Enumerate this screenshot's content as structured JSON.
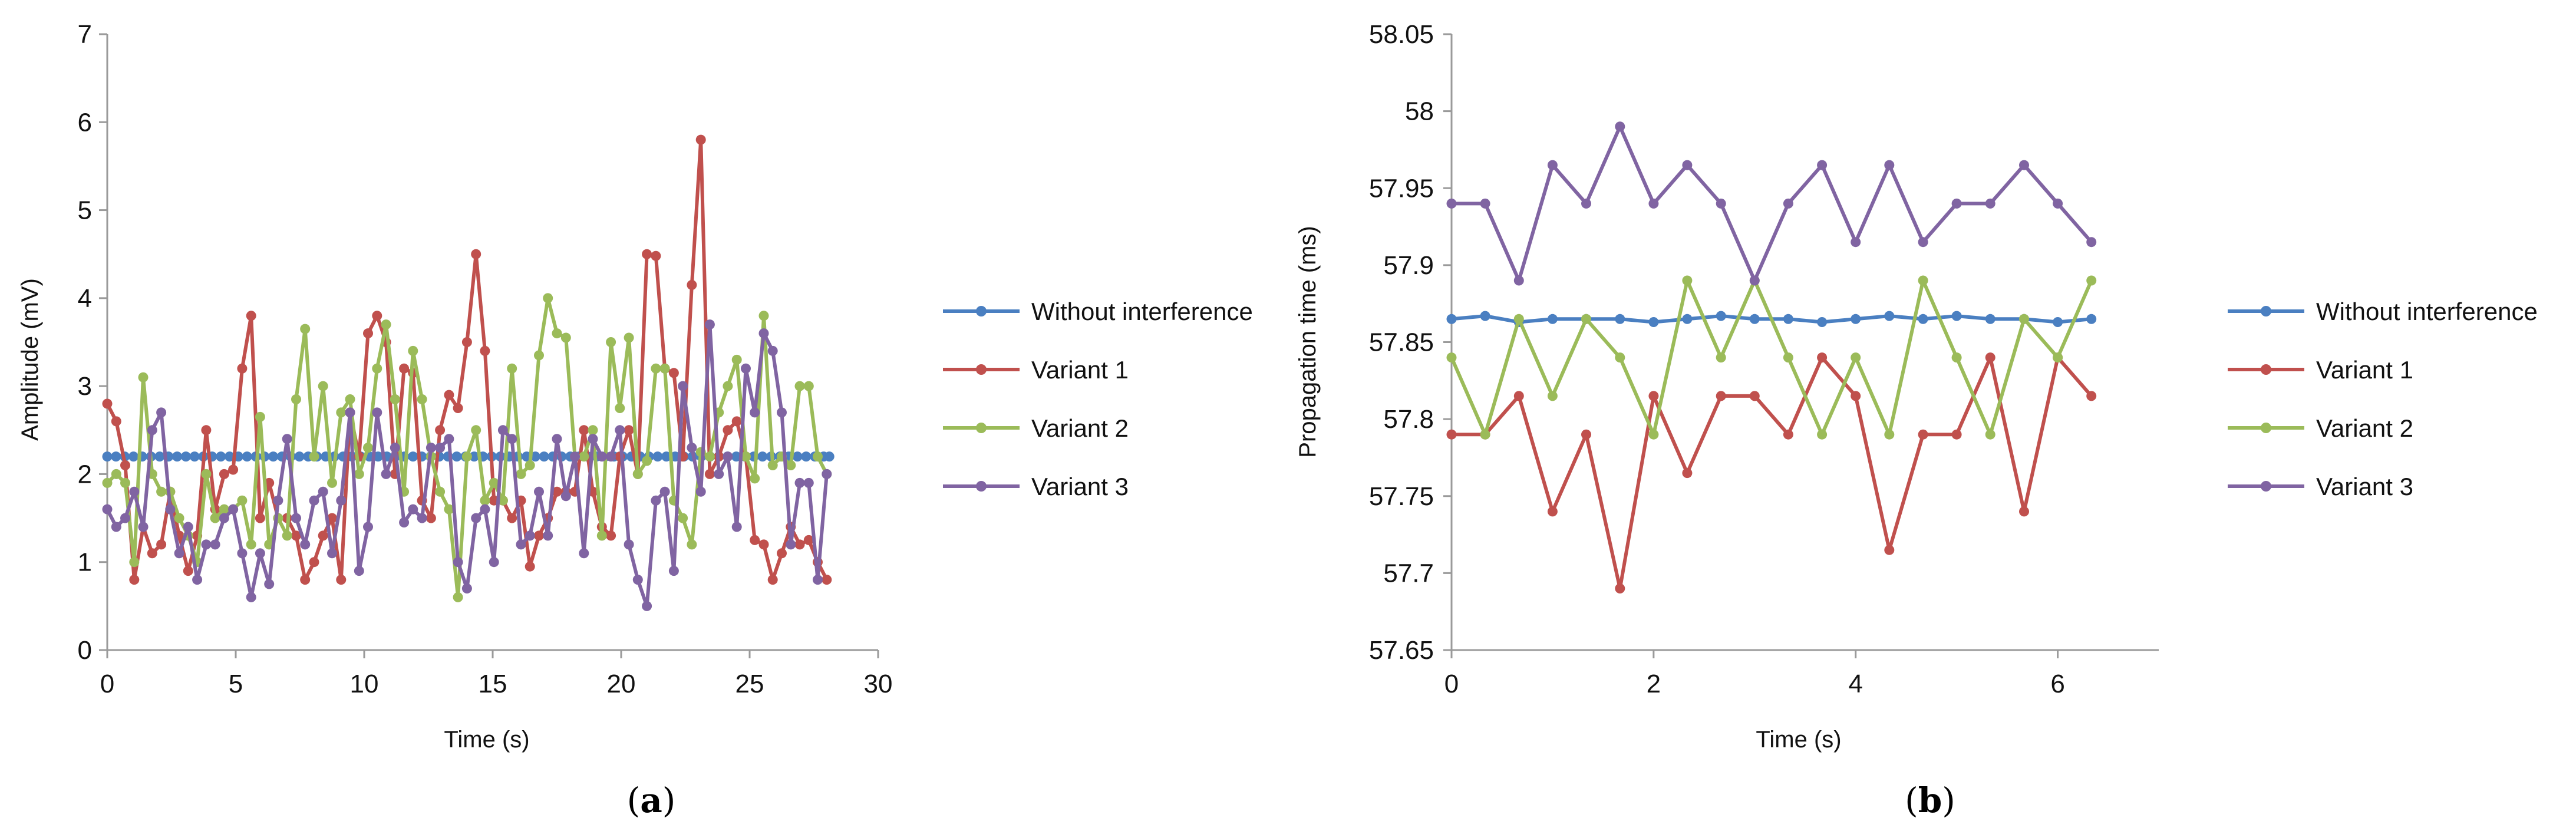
{
  "chart_data": [
    {
      "type": "line",
      "panel_label": "a",
      "xlabel": "Time (s)",
      "ylabel": "Amplitude (mV)",
      "xlim": [
        0,
        30
      ],
      "ylim": [
        0,
        7
      ],
      "xticks": [
        0,
        5,
        10,
        15,
        20,
        25,
        30
      ],
      "yticks": [
        0,
        1,
        2,
        3,
        4,
        5,
        6,
        7
      ],
      "legend_position": "right",
      "series": [
        {
          "name": "Without interference",
          "color": "#4a7fc1",
          "x": [
            0,
            0.34,
            0.68,
            1.02,
            1.36,
            1.7,
            2.04,
            2.38,
            2.72,
            3.06,
            3.4,
            3.74,
            4.08,
            4.42,
            4.76,
            5.1,
            5.44,
            5.78,
            6.12,
            6.46,
            6.8,
            7.14,
            7.48,
            7.82,
            8.16,
            8.5,
            8.84,
            9.18,
            9.52,
            9.86,
            10.2,
            10.54,
            10.88,
            11.22,
            11.56,
            11.9,
            12.24,
            12.58,
            12.92,
            13.26,
            13.6,
            13.94,
            14.28,
            14.62,
            14.96,
            15.3,
            15.64,
            15.98,
            16.32,
            16.66,
            17,
            17.34,
            17.68,
            18.02,
            18.36,
            18.7,
            19.04,
            19.38,
            19.72,
            20.06,
            20.4,
            20.74,
            21.08,
            21.42,
            21.76,
            22.1,
            22.44,
            22.78,
            23.12,
            23.46,
            23.8,
            24.14,
            24.48,
            24.82,
            25.16,
            25.5,
            25.84,
            26.18,
            26.52,
            26.86,
            27.2,
            27.54,
            27.88,
            28.1
          ],
          "values": [
            2.2,
            2.2,
            2.2,
            2.2,
            2.2,
            2.2,
            2.2,
            2.2,
            2.2,
            2.2,
            2.2,
            2.2,
            2.2,
            2.2,
            2.2,
            2.2,
            2.2,
            2.2,
            2.2,
            2.2,
            2.2,
            2.2,
            2.2,
            2.2,
            2.2,
            2.2,
            2.2,
            2.2,
            2.2,
            2.2,
            2.2,
            2.2,
            2.2,
            2.2,
            2.2,
            2.2,
            2.2,
            2.2,
            2.2,
            2.2,
            2.2,
            2.2,
            2.2,
            2.2,
            2.2,
            2.2,
            2.2,
            2.2,
            2.2,
            2.2,
            2.2,
            2.2,
            2.2,
            2.2,
            2.2,
            2.2,
            2.2,
            2.2,
            2.2,
            2.2,
            2.2,
            2.2,
            2.2,
            2.2,
            2.2,
            2.2,
            2.2,
            2.2,
            2.2,
            2.2,
            2.2,
            2.2,
            2.2,
            2.2,
            2.2,
            2.2,
            2.2,
            2.2,
            2.2,
            2.2,
            2.2,
            2.2,
            2.2,
            2.2
          ]
        },
        {
          "name": "Variant 1",
          "color": "#c0504d",
          "x": [
            0,
            0.35,
            0.7,
            1.05,
            1.4,
            1.75,
            2.1,
            2.45,
            2.8,
            3.15,
            3.5,
            3.85,
            4.2,
            4.55,
            4.9,
            5.25,
            5.6,
            5.95,
            6.3,
            6.65,
            7,
            7.35,
            7.7,
            8.05,
            8.4,
            8.75,
            9.1,
            9.45,
            9.8,
            10.15,
            10.5,
            10.85,
            11.2,
            11.55,
            11.9,
            12.25,
            12.6,
            12.95,
            13.3,
            13.65,
            14,
            14.35,
            14.7,
            15.05,
            15.4,
            15.75,
            16.1,
            16.45,
            16.8,
            17.15,
            17.5,
            17.85,
            18.2,
            18.55,
            18.9,
            19.25,
            19.6,
            19.95,
            20.3,
            20.65,
            21,
            21.35,
            21.7,
            22.05,
            22.4,
            22.75,
            23.1,
            23.45,
            23.8,
            24.15,
            24.5,
            24.85,
            25.2,
            25.55,
            25.9,
            26.25,
            26.6,
            26.95,
            27.3,
            27.65,
            28
          ],
          "values": [
            2.8,
            2.6,
            2.1,
            0.8,
            1.4,
            1.1,
            1.2,
            1.8,
            1.3,
            0.9,
            1.3,
            2.5,
            1.6,
            2,
            2.05,
            3.2,
            3.8,
            1.5,
            1.9,
            1.5,
            1.5,
            1.3,
            0.8,
            1,
            1.3,
            1.5,
            0.8,
            2.7,
            2.2,
            3.6,
            3.8,
            3.5,
            2,
            3.2,
            3.15,
            1.7,
            1.5,
            2.5,
            2.9,
            2.75,
            3.5,
            4.5,
            3.4,
            1.7,
            1.7,
            1.5,
            1.7,
            0.95,
            1.3,
            1.5,
            1.8,
            1.8,
            1.8,
            2.5,
            1.8,
            1.4,
            1.3,
            2.2,
            2.5,
            2,
            4.5,
            4.48,
            3.2,
            3.15,
            2.2,
            4.15,
            5.8,
            2,
            2.2,
            2.5,
            2.6,
            2.2,
            1.25,
            1.2,
            0.8,
            1.1,
            1.4,
            1.2,
            1.25,
            1,
            0.8
          ]
        },
        {
          "name": "Variant 2",
          "color": "#9bbb59",
          "x": [
            0,
            0.35,
            0.7,
            1.05,
            1.4,
            1.75,
            2.1,
            2.45,
            2.8,
            3.15,
            3.5,
            3.85,
            4.2,
            4.55,
            4.9,
            5.25,
            5.6,
            5.95,
            6.3,
            6.65,
            7,
            7.35,
            7.7,
            8.05,
            8.4,
            8.75,
            9.1,
            9.45,
            9.8,
            10.15,
            10.5,
            10.85,
            11.2,
            11.55,
            11.9,
            12.25,
            12.6,
            12.95,
            13.3,
            13.65,
            14,
            14.35,
            14.7,
            15.05,
            15.4,
            15.75,
            16.1,
            16.45,
            16.8,
            17.15,
            17.5,
            17.85,
            18.2,
            18.55,
            18.9,
            19.25,
            19.6,
            19.95,
            20.3,
            20.65,
            21,
            21.35,
            21.7,
            22.05,
            22.4,
            22.75,
            23.1,
            23.45,
            23.8,
            24.15,
            24.5,
            24.85,
            25.2,
            25.55,
            25.9,
            26.25,
            26.6,
            26.95,
            27.3,
            27.65,
            28
          ],
          "values": [
            1.9,
            2,
            1.9,
            1,
            3.1,
            2,
            1.8,
            1.8,
            1.5,
            1.3,
            1,
            2,
            1.5,
            1.6,
            1.6,
            1.7,
            1.2,
            2.65,
            1.2,
            1.5,
            1.3,
            2.85,
            3.65,
            2.2,
            3,
            1.9,
            2.7,
            2.85,
            2,
            2.3,
            3.2,
            3.7,
            2.85,
            1.8,
            3.4,
            2.85,
            2.2,
            1.8,
            1.6,
            0.6,
            2.2,
            2.5,
            1.7,
            1.9,
            1.7,
            3.2,
            2,
            2.1,
            3.35,
            4,
            3.6,
            3.55,
            2.2,
            2.2,
            2.5,
            1.3,
            3.5,
            2.75,
            3.55,
            2,
            2.15,
            3.2,
            3.2,
            1.7,
            1.5,
            1.2,
            2.25,
            2.2,
            2.7,
            3,
            3.3,
            2.2,
            1.95,
            3.8,
            2.1,
            2.2,
            2.1,
            3,
            3,
            2.2,
            2
          ]
        },
        {
          "name": "Variant 3",
          "color": "#8064a2",
          "x": [
            0,
            0.35,
            0.7,
            1.05,
            1.4,
            1.75,
            2.1,
            2.45,
            2.8,
            3.15,
            3.5,
            3.85,
            4.2,
            4.55,
            4.9,
            5.25,
            5.6,
            5.95,
            6.3,
            6.65,
            7,
            7.35,
            7.7,
            8.05,
            8.4,
            8.75,
            9.1,
            9.45,
            9.8,
            10.15,
            10.5,
            10.85,
            11.2,
            11.55,
            11.9,
            12.25,
            12.6,
            12.95,
            13.3,
            13.65,
            14,
            14.35,
            14.7,
            15.05,
            15.4,
            15.75,
            16.1,
            16.45,
            16.8,
            17.15,
            17.5,
            17.85,
            18.2,
            18.55,
            18.9,
            19.25,
            19.6,
            19.95,
            20.3,
            20.65,
            21,
            21.35,
            21.7,
            22.05,
            22.4,
            22.75,
            23.1,
            23.45,
            23.8,
            24.15,
            24.5,
            24.85,
            25.2,
            25.55,
            25.9,
            26.25,
            26.6,
            26.95,
            27.3,
            27.65,
            28
          ],
          "values": [
            1.6,
            1.4,
            1.5,
            1.8,
            1.4,
            2.5,
            2.7,
            1.6,
            1.1,
            1.4,
            0.8,
            1.2,
            1.2,
            1.5,
            1.6,
            1.1,
            0.6,
            1.1,
            0.75,
            1.7,
            2.4,
            1.5,
            1.2,
            1.7,
            1.8,
            1.1,
            1.7,
            2.7,
            0.9,
            1.4,
            2.7,
            2.0,
            2.3,
            1.45,
            1.6,
            1.5,
            2.3,
            2.3,
            2.4,
            1.0,
            0.7,
            1.5,
            1.6,
            1.0,
            2.5,
            2.4,
            1.2,
            1.3,
            1.8,
            1.3,
            2.4,
            1.75,
            2.2,
            1.1,
            2.4,
            2.2,
            2.2,
            2.5,
            1.2,
            0.8,
            0.5,
            1.7,
            1.8,
            0.9,
            3,
            2.3,
            1.8,
            3.7,
            2.0,
            2.2,
            1.4,
            3.2,
            2.7,
            3.6,
            3.4,
            2.7,
            1.2,
            1.9,
            1.9,
            0.8,
            2
          ]
        }
      ]
    },
    {
      "type": "line",
      "panel_label": "b",
      "xlabel": "Time (s)",
      "ylabel": "Propagation time (ms)",
      "xlim": [
        0,
        7
      ],
      "ylim": [
        57.65,
        58.05
      ],
      "xticks": [
        0,
        2,
        4,
        6
      ],
      "yticks": [
        57.65,
        57.7,
        57.75,
        57.8,
        57.85,
        57.9,
        57.95,
        58,
        58.05
      ],
      "ytick_labels": [
        "57.65",
        "57.7",
        "57.75",
        "57.8",
        "57.85",
        "57.9",
        "57.95",
        "58",
        "58.05"
      ],
      "legend_position": "right",
      "x": [
        0,
        0.333,
        0.667,
        1,
        1.333,
        1.667,
        2,
        2.333,
        2.667,
        3,
        3.333,
        3.667,
        4,
        4.333,
        4.667,
        5,
        5.333,
        5.667,
        6,
        6.333
      ],
      "series": [
        {
          "name": "Without interference",
          "color": "#4a7fc1",
          "values": [
            57.865,
            57.867,
            57.863,
            57.865,
            57.865,
            57.865,
            57.863,
            57.865,
            57.867,
            57.865,
            57.865,
            57.863,
            57.865,
            57.867,
            57.865,
            57.867,
            57.865,
            57.865,
            57.863,
            57.865
          ]
        },
        {
          "name": "Variant 1",
          "color": "#c0504d",
          "values": [
            57.79,
            57.79,
            57.815,
            57.74,
            57.79,
            57.69,
            57.815,
            57.765,
            57.815,
            57.815,
            57.79,
            57.84,
            57.815,
            57.715,
            57.79,
            57.79,
            57.84,
            57.74,
            57.84,
            57.815
          ]
        },
        {
          "name": "Variant 2",
          "color": "#9bbb59",
          "values": [
            57.84,
            57.79,
            57.865,
            57.815,
            57.865,
            57.84,
            57.79,
            57.89,
            57.84,
            57.89,
            57.84,
            57.79,
            57.84,
            57.79,
            57.89,
            57.84,
            57.79,
            57.865,
            57.84,
            57.89
          ]
        },
        {
          "name": "Variant 3",
          "color": "#8064a2",
          "values": [
            57.94,
            57.94,
            57.89,
            57.965,
            57.94,
            57.99,
            57.94,
            57.965,
            57.94,
            57.89,
            57.94,
            57.965,
            57.915,
            57.965,
            57.915,
            57.94,
            57.94,
            57.965,
            57.94,
            57.915
          ]
        }
      ]
    }
  ],
  "captions": [
    {
      "open": "(",
      "letter": "a",
      "close": ")"
    },
    {
      "open": "(",
      "letter": "b",
      "close": ")"
    }
  ]
}
